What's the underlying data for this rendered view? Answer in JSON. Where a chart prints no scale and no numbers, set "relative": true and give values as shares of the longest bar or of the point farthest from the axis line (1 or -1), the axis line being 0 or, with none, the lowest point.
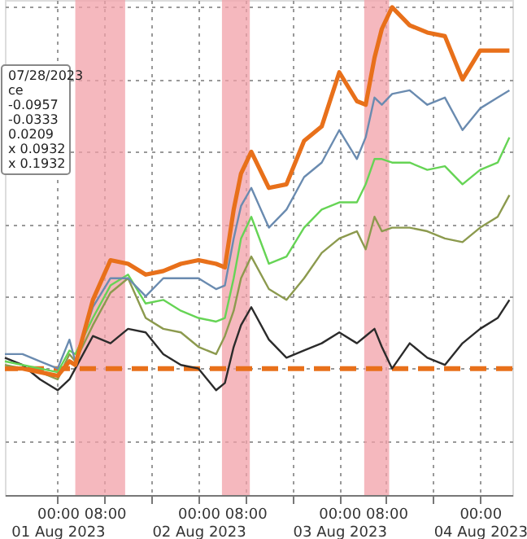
{
  "chart_data": {
    "type": "line",
    "relative": true,
    "grid": true,
    "x": [
      "2023-07-31T15:00",
      "2023-07-31T18:00",
      "2023-07-31T21:00",
      "2023-08-01T00:00",
      "2023-08-01T02:00",
      "2023-08-01T03:00",
      "2023-08-01T06:00",
      "2023-08-01T09:00",
      "2023-08-01T12:00",
      "2023-08-01T15:00",
      "2023-08-01T18:00",
      "2023-08-01T21:00",
      "2023-08-02T00:00",
      "2023-08-02T03:00",
      "2023-08-02T04:30",
      "2023-08-02T06:00",
      "2023-08-02T07:15",
      "2023-08-02T09:00",
      "2023-08-02T12:00",
      "2023-08-02T15:00",
      "2023-08-02T18:00",
      "2023-08-02T21:00",
      "2023-08-03T00:00",
      "2023-08-03T03:00",
      "2023-08-03T04:30",
      "2023-08-03T06:00",
      "2023-08-03T07:15",
      "2023-08-03T09:00",
      "2023-08-03T12:00",
      "2023-08-03T15:00",
      "2023-08-03T18:00",
      "2023-08-03T21:00",
      "2023-08-04T00:00",
      "2023-08-04T03:00",
      "2023-08-04T05:00"
    ],
    "xlim": [
      "2023-07-31T15:00",
      "2023-08-04T05:30"
    ],
    "xticks": [
      {
        "value": "2023-08-01T00:00",
        "label": "00:00\n01 Aug 2023"
      },
      {
        "value": "2023-08-01T08:00",
        "label": "08:00"
      },
      {
        "value": "2023-08-01T16:00",
        "label": null
      },
      {
        "value": "2023-08-02T00:00",
        "label": "00:00\n02 Aug 2023"
      },
      {
        "value": "2023-08-02T08:00",
        "label": "08:00"
      },
      {
        "value": "2023-08-02T16:00",
        "label": null
      },
      {
        "value": "2023-08-03T00:00",
        "label": "00:00\n03 Aug 2023"
      },
      {
        "value": "2023-08-03T08:00",
        "label": "08:00"
      },
      {
        "value": "2023-08-03T16:00",
        "label": null
      },
      {
        "value": "2023-08-04T00:00",
        "label": "00:00\n04 Aug 2023"
      }
    ],
    "series": [
      {
        "color": "#e8701a",
        "values": [
          0.0,
          0.0,
          -0.01,
          -0.02,
          0.02,
          0.01,
          0.19,
          0.3,
          0.29,
          0.26,
          0.27,
          0.29,
          0.3,
          0.29,
          0.28,
          0.44,
          0.54,
          0.6,
          0.5,
          0.51,
          0.63,
          0.67,
          0.82,
          0.74,
          0.73,
          0.86,
          0.94,
          1.0,
          0.95,
          0.93,
          0.92,
          0.8,
          0.88,
          0.88,
          0.88
        ]
      },
      {
        "color": "#6a8bb0",
        "values": [
          0.04,
          0.04,
          0.02,
          0,
          0.08,
          0.02,
          0.17,
          0.25,
          0.25,
          0.2,
          0.25,
          0.25,
          0.25,
          0.22,
          0.23,
          0.36,
          0.45,
          0.5,
          0.39,
          0.44,
          0.53,
          0.57,
          0.66,
          0.58,
          0.64,
          0.75,
          0.73,
          0.76,
          0.77,
          0.73,
          0.75,
          0.66,
          0.72,
          0.75,
          0.77
        ]
      },
      {
        "color": "#66d455",
        "values": [
          0.02,
          0.01,
          0,
          -0.01,
          0.05,
          0.04,
          0.14,
          0.23,
          0.26,
          0.18,
          0.19,
          0.16,
          0.14,
          0.13,
          0.14,
          0.25,
          0.36,
          0.42,
          0.29,
          0.31,
          0.39,
          0.44,
          0.46,
          0.46,
          0.51,
          0.58,
          0.58,
          0.57,
          0.57,
          0.55,
          0.56,
          0.51,
          0.55,
          0.57,
          0.64
        ]
      },
      {
        "color": "#8c9a4e",
        "values": [
          0.01,
          0,
          -0.01,
          -0.03,
          0.04,
          0.02,
          0.12,
          0.21,
          0.25,
          0.14,
          0.11,
          0.1,
          0.06,
          0.04,
          0.09,
          0.16,
          0.25,
          0.31,
          0.22,
          0.19,
          0.25,
          0.32,
          0.36,
          0.38,
          0.33,
          0.42,
          0.38,
          0.39,
          0.39,
          0.38,
          0.36,
          0.35,
          0.39,
          0.42,
          0.48
        ]
      },
      {
        "color": "#2b2b2b",
        "values": [
          0.03,
          0.01,
          -0.03,
          -0.06,
          -0.03,
          0,
          0.09,
          0.07,
          0.11,
          0.1,
          0.04,
          0.01,
          0,
          -0.06,
          -0.04,
          0.06,
          0.12,
          0.17,
          0.08,
          0.03,
          0.05,
          0.07,
          0.1,
          0.07,
          0.09,
          0.11,
          0.06,
          0,
          0.07,
          0.03,
          0.01,
          0.07,
          0.11,
          0.14,
          0.19
        ]
      }
    ],
    "ref_lines": [
      {
        "axis": "y",
        "value": 0,
        "color": "#e8701a",
        "line_style": "dashed"
      }
    ],
    "bands": [
      {
        "axis": "x",
        "from": "2023-08-01T03:00",
        "to": "2023-08-01T11:30",
        "color": "#f2a0a8"
      },
      {
        "axis": "x",
        "from": "2023-08-02T04:00",
        "to": "2023-08-02T08:45",
        "color": "#f2a0a8"
      },
      {
        "axis": "x",
        "from": "2023-08-03T04:15",
        "to": "2023-08-03T08:30",
        "color": "#f2a0a8"
      }
    ],
    "annotations": [
      "07/28/2023",
      "ce",
      "-0.0957",
      "-0.0333",
      "0.0209",
      "x 0.0932",
      "x 0.1932"
    ]
  }
}
